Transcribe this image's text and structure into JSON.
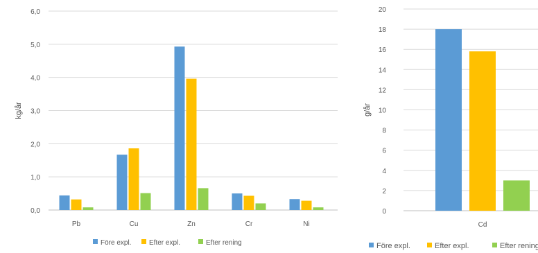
{
  "chart_data": [
    {
      "type": "bar",
      "ylabel": "kg/år",
      "ylim": [
        0,
        6
      ],
      "yticks": [
        "0,0",
        "1,0",
        "2,0",
        "3,0",
        "4,0",
        "5,0",
        "6,0"
      ],
      "grid": true,
      "legend_position": "bottom",
      "categories": [
        "Pb",
        "Cu",
        "Zn",
        "Cr",
        "Ni"
      ],
      "series": [
        {
          "name": "Före expl.",
          "color": "#5b9bd5",
          "values": [
            0.44,
            1.67,
            4.93,
            0.5,
            0.33
          ]
        },
        {
          "name": "Efter expl.",
          "color": "#ffc000",
          "values": [
            0.32,
            1.86,
            3.96,
            0.43,
            0.28
          ]
        },
        {
          "name": "Efter rening",
          "color": "#92d050",
          "values": [
            0.08,
            0.51,
            0.66,
            0.2,
            0.08
          ]
        }
      ]
    },
    {
      "type": "bar",
      "ylabel": "g/år",
      "ylim": [
        0,
        20
      ],
      "yticks": [
        "0",
        "2",
        "4",
        "6",
        "8",
        "10",
        "12",
        "14",
        "16",
        "18",
        "20"
      ],
      "grid": true,
      "legend_position": "bottom",
      "categories": [
        "Cd"
      ],
      "series": [
        {
          "name": "Före expl.",
          "color": "#5b9bd5",
          "values": [
            18.0
          ]
        },
        {
          "name": "Efter expl.",
          "color": "#ffc000",
          "values": [
            15.8
          ]
        },
        {
          "name": "Efter rening",
          "color": "#92d050",
          "values": [
            3.0
          ]
        }
      ]
    }
  ]
}
